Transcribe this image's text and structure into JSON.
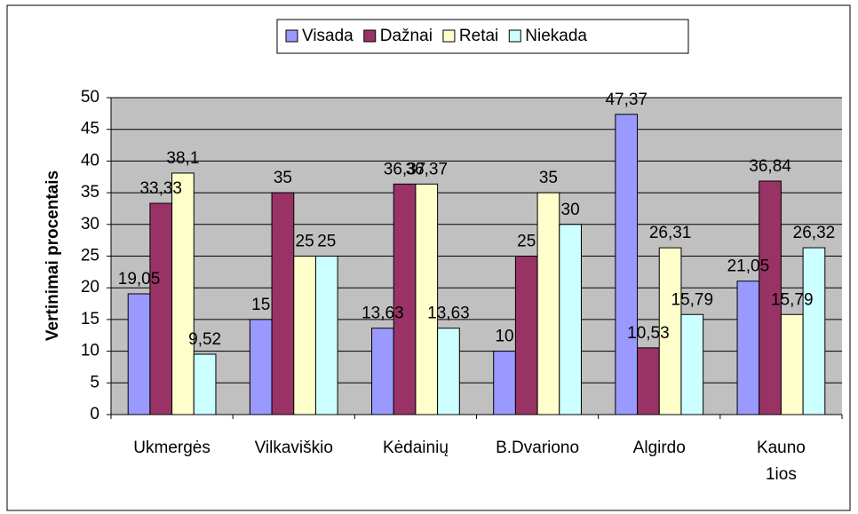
{
  "chart_data": {
    "type": "bar",
    "categories": [
      "Ukmergės",
      "Vilkaviškio",
      "Kėdainių",
      "B.Dvariono",
      "Algirdo",
      "Kauno 1ios"
    ],
    "ylabel": "Vertinimai procentais",
    "series": [
      {
        "name": "Visada",
        "color": "#9999ff",
        "values": [
          19.05,
          15,
          13.63,
          10,
          47.37,
          21.05
        ],
        "value_labels": [
          "19,05",
          "15",
          "13,63",
          "10",
          "47,37",
          "21,05"
        ]
      },
      {
        "name": "Dažnai",
        "color": "#993366",
        "values": [
          33.33,
          35,
          36.37,
          25,
          10.53,
          36.84
        ],
        "value_labels": [
          "33,33",
          "35",
          "36,37",
          "25",
          "10,53",
          "36,84"
        ]
      },
      {
        "name": "Retai",
        "color": "#ffffcc",
        "values": [
          38.1,
          25,
          36.37,
          35,
          26.31,
          15.79
        ],
        "value_labels": [
          "38,1",
          "25",
          "36,37",
          "35",
          "26,31",
          "15,79"
        ]
      },
      {
        "name": "Niekada",
        "color": "#ccffff",
        "values": [
          9.52,
          25,
          13.63,
          30,
          15.79,
          26.32
        ],
        "value_labels": [
          "9,52",
          "25",
          "13,63",
          "30",
          "15,79",
          "26,32"
        ]
      }
    ],
    "ylim": [
      0,
      50
    ],
    "yticks": [
      0,
      5,
      10,
      15,
      20,
      25,
      30,
      35,
      40,
      45,
      50
    ],
    "grid": true,
    "legend": "top"
  }
}
